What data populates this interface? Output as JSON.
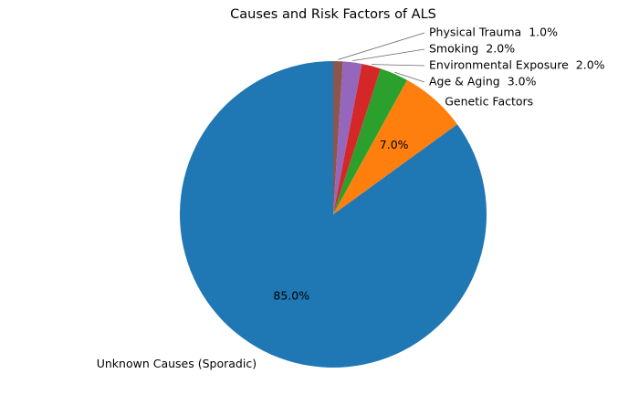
{
  "chart_data": {
    "type": "pie",
    "title": "Causes and Risk Factors of ALS",
    "categories": [
      "Unknown Causes (Sporadic)",
      "Genetic Factors",
      "Age & Aging",
      "Environmental Exposure",
      "Smoking",
      "Physical Trauma"
    ],
    "values": [
      85,
      7,
      3,
      2,
      2,
      1
    ],
    "percent_labels": [
      "85.0%",
      "7.0%",
      "3.0%",
      "2.0%",
      "2.0%",
      "1.0%"
    ],
    "colors": [
      "#1f77b4",
      "#ff7f0e",
      "#2ca02c",
      "#d62728",
      "#9467bd",
      "#8c564b"
    ],
    "start_angle_deg": 90,
    "direction": "counterclockwise",
    "legend": "none"
  }
}
